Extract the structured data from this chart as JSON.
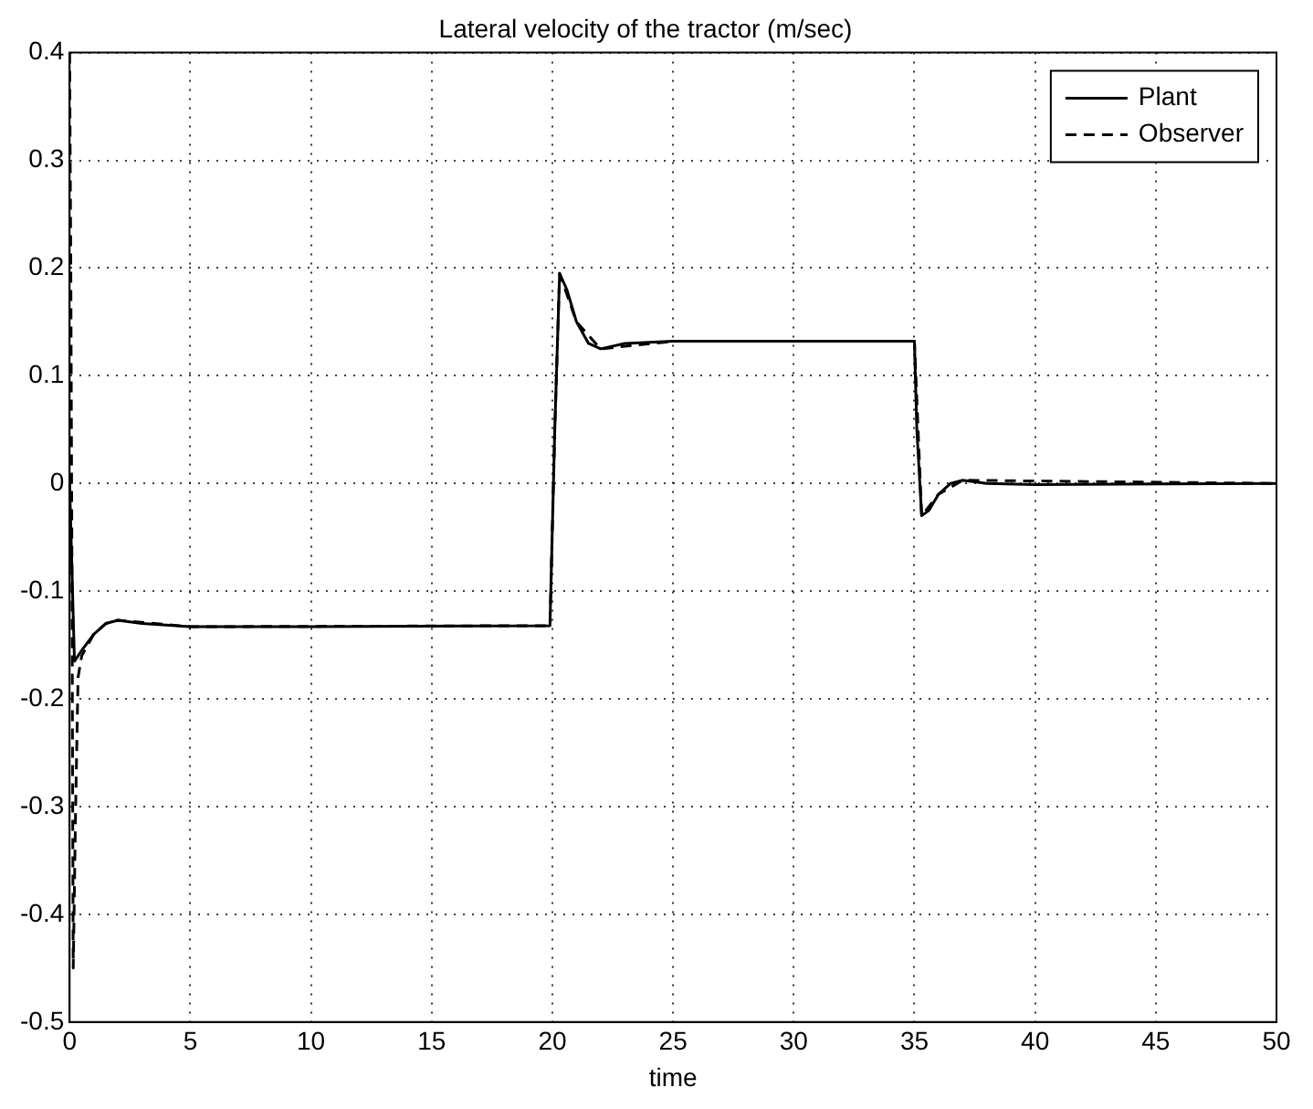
{
  "chart_data": {
    "type": "line",
    "title": "Lateral velocity of the tractor (m/sec)",
    "xlabel": "time",
    "xlim": [
      0,
      50
    ],
    "xticks": [
      0,
      5,
      10,
      15,
      20,
      25,
      30,
      35,
      40,
      45,
      50
    ],
    "ylim": [
      -0.5,
      0.4
    ],
    "yticks": [
      -0.5,
      -0.4,
      -0.3,
      -0.2,
      -0.1,
      0,
      0.1,
      0.2,
      0.3,
      0.4
    ],
    "grid": true,
    "legend": "top right",
    "marker": "none",
    "series": [
      {
        "name": "Plant",
        "color": "#000000",
        "line_style": "solid",
        "x": [
          0,
          0.2,
          0.5,
          1,
          1.5,
          2,
          3,
          5,
          10,
          19.9,
          20.1,
          20.3,
          20.6,
          21,
          21.5,
          22,
          23,
          25,
          35,
          35.1,
          35.3,
          35.6,
          36,
          36.5,
          37,
          38,
          40,
          50
        ],
        "values": [
          0,
          -0.165,
          -0.155,
          -0.14,
          -0.13,
          -0.127,
          -0.13,
          -0.133,
          -0.133,
          -0.132,
          0.05,
          0.195,
          0.18,
          0.15,
          0.13,
          0.125,
          0.13,
          0.132,
          0.132,
          0.05,
          -0.03,
          -0.025,
          -0.01,
          0,
          0.003,
          0,
          -0.001,
          0
        ]
      },
      {
        "name": "Observer",
        "color": "#000000",
        "line_style": "dashed",
        "x": [
          0,
          0.05,
          0.1,
          0.15,
          0.25,
          0.35,
          0.5,
          1,
          1.5,
          2,
          5,
          19.9,
          20.1,
          20.3,
          21,
          22,
          25,
          35,
          35.3,
          36,
          37,
          50
        ],
        "values": [
          0.4,
          0.2,
          -0.1,
          -0.45,
          -0.3,
          -0.18,
          -0.16,
          -0.14,
          -0.13,
          -0.127,
          -0.133,
          -0.132,
          0.05,
          0.195,
          0.15,
          0.125,
          0.132,
          0.132,
          -0.03,
          -0.01,
          0.003,
          0
        ]
      }
    ]
  }
}
